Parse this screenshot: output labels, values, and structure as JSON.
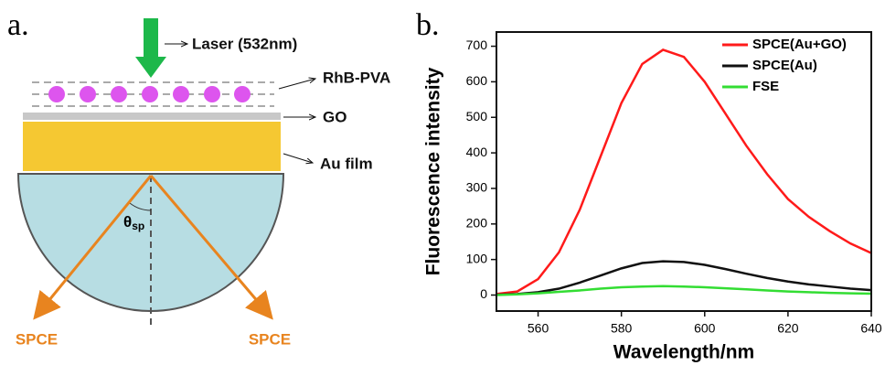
{
  "panel_labels": [
    "a.",
    "b."
  ],
  "diagram": {
    "laser": "Laser (532nm)",
    "layers": [
      "RhB-PVA",
      "GO",
      "Au film"
    ],
    "angle": {
      "symbol": "θ",
      "subscript": "sp"
    },
    "outputs": [
      "SPCE",
      "SPCE"
    ]
  },
  "chart_data": {
    "type": "line",
    "x_label": "Wavelength/nm",
    "y_label": "Fluorescence intensity",
    "x": [
      550,
      555,
      560,
      565,
      570,
      575,
      580,
      585,
      590,
      595,
      600,
      605,
      610,
      615,
      620,
      625,
      630,
      635,
      640
    ],
    "series": [
      {
        "name": "SPCE(Au+GO)",
        "color": "#ff1a1a",
        "values": [
          3,
          10,
          45,
          120,
          240,
          390,
          540,
          650,
          690,
          670,
          600,
          510,
          420,
          340,
          270,
          220,
          180,
          145,
          118
        ]
      },
      {
        "name": "SPCE(Au)",
        "color": "#111111",
        "values": [
          1,
          3,
          8,
          18,
          35,
          55,
          75,
          90,
          95,
          93,
          85,
          73,
          60,
          48,
          38,
          30,
          24,
          18,
          14
        ]
      },
      {
        "name": "FSE",
        "color": "#33dd33",
        "values": [
          0,
          2,
          5,
          9,
          13,
          18,
          22,
          24,
          25,
          24,
          22,
          19,
          16,
          13,
          10,
          8,
          6,
          5,
          4
        ]
      }
    ],
    "xlim": [
      550,
      640
    ],
    "xticks": [
      560,
      580,
      600,
      620,
      640
    ],
    "ylim": [
      -45,
      740
    ],
    "yticks": [
      0,
      100,
      200,
      300,
      400,
      500,
      600,
      700
    ],
    "legend": "upper right"
  }
}
